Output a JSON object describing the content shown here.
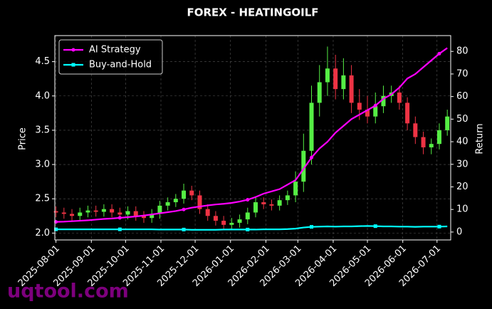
{
  "chart_data": {
    "type": "candlestick",
    "title": "FOREX - HEATINGOILF",
    "ylabel": "Price",
    "y2label": "Return",
    "x": [
      "2025-08-01",
      "2025-08-08",
      "2025-08-15",
      "2025-08-22",
      "2025-08-29",
      "2025-09-05",
      "2025-09-12",
      "2025-09-19",
      "2025-09-26",
      "2025-10-03",
      "2025-10-10",
      "2025-10-17",
      "2025-10-24",
      "2025-10-31",
      "2025-11-07",
      "2025-11-14",
      "2025-11-21",
      "2025-11-28",
      "2025-12-05",
      "2025-12-12",
      "2025-12-19",
      "2025-12-26",
      "2026-01-02",
      "2026-01-09",
      "2026-01-16",
      "2026-01-23",
      "2026-01-30",
      "2026-02-06",
      "2026-02-13",
      "2026-02-20",
      "2026-02-27",
      "2026-03-06",
      "2026-03-13",
      "2026-03-20",
      "2026-03-27",
      "2026-04-03",
      "2026-04-10",
      "2026-04-17",
      "2026-04-24",
      "2026-05-01",
      "2026-05-08",
      "2026-05-15",
      "2026-05-22",
      "2026-05-29",
      "2026-06-05",
      "2026-06-12",
      "2026-06-19",
      "2026-06-26",
      "2026-07-03",
      "2026-07-10"
    ],
    "open": [
      2.32,
      2.3,
      2.28,
      2.25,
      2.3,
      2.33,
      2.31,
      2.35,
      2.3,
      2.27,
      2.32,
      2.25,
      2.22,
      2.28,
      2.4,
      2.45,
      2.5,
      2.62,
      2.55,
      2.35,
      2.25,
      2.18,
      2.12,
      2.15,
      2.2,
      2.3,
      2.45,
      2.42,
      2.4,
      2.48,
      2.55,
      2.75,
      3.2,
      3.9,
      4.2,
      4.4,
      4.1,
      4.3,
      3.9,
      3.8,
      3.7,
      3.85,
      4.0,
      4.05,
      3.9,
      3.6,
      3.4,
      3.25,
      3.3,
      3.5
    ],
    "high": [
      2.39,
      2.37,
      2.35,
      2.37,
      2.4,
      2.4,
      2.42,
      2.42,
      2.37,
      2.39,
      2.39,
      2.32,
      2.35,
      2.47,
      2.52,
      2.57,
      2.72,
      2.69,
      2.62,
      2.42,
      2.32,
      2.25,
      2.22,
      2.27,
      2.37,
      2.52,
      2.52,
      2.49,
      2.55,
      2.62,
      2.9,
      3.45,
      4.15,
      4.45,
      4.72,
      4.6,
      4.55,
      4.45,
      4.1,
      4.0,
      4.05,
      4.15,
      4.15,
      4.15,
      3.98,
      3.7,
      3.48,
      3.38,
      3.6,
      3.8
    ],
    "low": [
      2.23,
      2.21,
      2.18,
      2.18,
      2.23,
      2.24,
      2.24,
      2.23,
      2.2,
      2.2,
      2.18,
      2.15,
      2.15,
      2.21,
      2.33,
      2.38,
      2.43,
      2.48,
      2.28,
      2.18,
      2.11,
      2.05,
      2.05,
      2.08,
      2.13,
      2.23,
      2.35,
      2.33,
      2.33,
      2.41,
      2.45,
      2.6,
      3.0,
      3.7,
      4.0,
      3.95,
      3.95,
      3.75,
      3.65,
      3.6,
      3.6,
      3.75,
      3.9,
      3.8,
      3.5,
      3.3,
      3.15,
      3.15,
      3.22,
      3.42
    ],
    "close": [
      2.3,
      2.28,
      2.25,
      2.3,
      2.33,
      2.31,
      2.35,
      2.3,
      2.27,
      2.32,
      2.25,
      2.22,
      2.28,
      2.4,
      2.45,
      2.5,
      2.62,
      2.55,
      2.35,
      2.25,
      2.18,
      2.12,
      2.15,
      2.2,
      2.3,
      2.45,
      2.42,
      2.4,
      2.48,
      2.55,
      2.75,
      3.2,
      3.9,
      4.2,
      4.4,
      4.1,
      4.3,
      3.9,
      3.8,
      3.7,
      3.85,
      4.0,
      4.05,
      3.9,
      3.6,
      3.4,
      3.25,
      3.3,
      3.5,
      3.7
    ],
    "up_color": "#55ee44",
    "down_color": "#ee3344",
    "series": [
      {
        "name": "AI Strategy",
        "color": "#ff00ff",
        "marker": "circle",
        "axis": "y2",
        "values": [
          4.5,
          4.6,
          4.8,
          5,
          5.2,
          5.5,
          5.8,
          6,
          6.3,
          6.6,
          6.9,
          7.3,
          7.8,
          8.3,
          8.8,
          9.3,
          10,
          10.8,
          11.3,
          11.8,
          12.2,
          12.5,
          12.9,
          13.5,
          14.3,
          15.5,
          17,
          18,
          19,
          21,
          23,
          28,
          33,
          37,
          40,
          44,
          47,
          50,
          52,
          54,
          56,
          59,
          61,
          64,
          68,
          70,
          73,
          76,
          79,
          81.5
        ]
      },
      {
        "name": "Buy-and-Hold",
        "color": "#00ffff",
        "marker": "square",
        "axis": "y2",
        "values": [
          1.2,
          1.2,
          1.2,
          1.2,
          1.2,
          1.2,
          1.2,
          1.2,
          1.2,
          1.2,
          1.2,
          1.2,
          1.2,
          1.1,
          1.1,
          1.1,
          1.1,
          1.0,
          1.0,
          1.0,
          1.0,
          1.1,
          1.1,
          1.1,
          1.1,
          1.1,
          1.2,
          1.2,
          1.2,
          1.3,
          1.5,
          2.0,
          2.3,
          2.4,
          2.5,
          2.4,
          2.5,
          2.5,
          2.6,
          2.7,
          2.6,
          2.5,
          2.5,
          2.4,
          2.4,
          2.3,
          2.4,
          2.4,
          2.4,
          2.5
        ]
      }
    ],
    "xlim": [
      "2025-07-31",
      "2026-07-13"
    ],
    "xticks": [
      "2025-08-01",
      "2025-09-01",
      "2025-10-01",
      "2025-11-01",
      "2025-12-01",
      "2026-01-01",
      "2026-02-01",
      "2026-03-01",
      "2026-04-01",
      "2026-05-01",
      "2026-06-01",
      "2026-07-01"
    ],
    "ylim": [
      1.9,
      4.88
    ],
    "yticks": [
      {
        "value": 2,
        "label": "2.0"
      },
      2.5,
      {
        "value": 3,
        "label": "3.0"
      },
      3.5,
      {
        "value": 4,
        "label": "4.0"
      },
      4.5
    ],
    "y2lim": [
      -3.5,
      87
    ],
    "y2ticks": [
      0,
      10,
      20,
      30,
      40,
      50,
      60,
      70,
      80
    ],
    "grid": true,
    "legend": "upper left"
  },
  "watermark": "uqtool.com"
}
